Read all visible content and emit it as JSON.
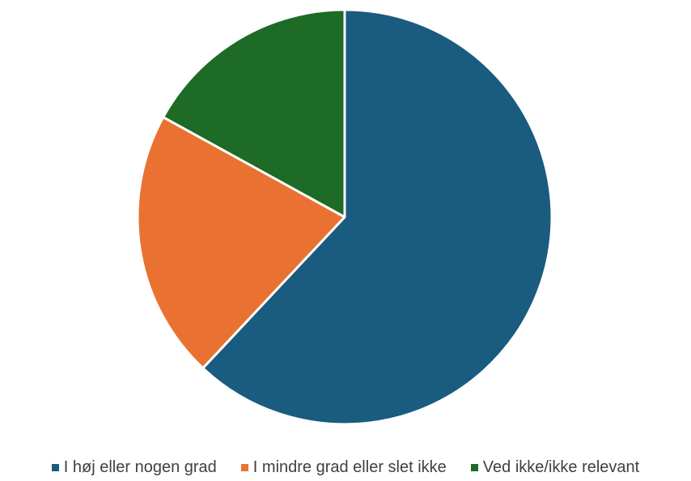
{
  "chart_data": {
    "type": "pie",
    "categories": [
      "I høj eller nogen grad",
      "I mindre grad eller slet ikke",
      "Ved ikke/ikke relevant"
    ],
    "values": [
      62,
      21,
      17
    ],
    "colors": [
      "#1a5b80",
      "#e97232",
      "#1d6b26"
    ],
    "start_angle": "12 o'clock, clockwise",
    "legend_position": "bottom",
    "title": ""
  }
}
